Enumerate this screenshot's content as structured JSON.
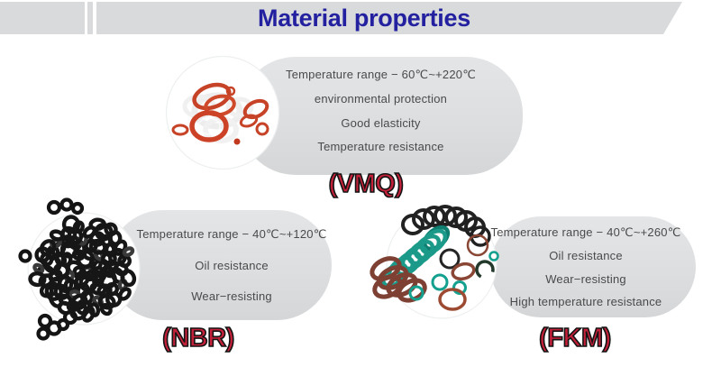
{
  "header": {
    "title": "Material properties"
  },
  "colors": {
    "title_blue": "#2321a0",
    "banner_gray": "#d8dadc",
    "pill_gray": "#dfe1e3",
    "label_red": "#c32039",
    "property_text_gray": "#4a4a4a"
  },
  "materials": [
    {
      "id": "vmq",
      "label": "(VMQ)",
      "image": "red-and-white-silicone-o-rings-photo",
      "properties": [
        "Temperature range − 60℃~+220℃",
        "environmental protection",
        "Good elasticity",
        "Temperature resistance"
      ]
    },
    {
      "id": "nbr",
      "label": "(NBR)",
      "image": "black-rubber-o-rings-pile-photo",
      "properties": [
        "Temperature range − 40℃~+120℃",
        "Oil resistance",
        "Wear−resisting"
      ]
    },
    {
      "id": "fkm",
      "label": "(FKM)",
      "image": "colorful-fkm-o-rings-photo",
      "properties": [
        "Temperature range − 40℃~+260℃",
        "Oil resistance",
        "Wear−resisting",
        "High temperature resistance"
      ]
    }
  ]
}
